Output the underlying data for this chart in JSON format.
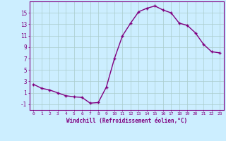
{
  "x": [
    0,
    1,
    2,
    3,
    4,
    5,
    6,
    7,
    8,
    9,
    10,
    11,
    12,
    13,
    14,
    15,
    16,
    17,
    18,
    19,
    20,
    21,
    22,
    23
  ],
  "y": [
    2.5,
    1.8,
    1.5,
    1.0,
    0.5,
    0.3,
    0.2,
    -0.8,
    -0.7,
    2.0,
    7.0,
    11.0,
    13.2,
    15.2,
    15.8,
    16.2,
    15.5,
    15.0,
    13.2,
    12.8,
    11.5,
    9.5,
    8.2,
    8.0
  ],
  "line_color": "#800080",
  "marker": "+",
  "marker_color": "#800080",
  "bg_color": "#cceeff",
  "grid_color": "#aacccc",
  "xlabel": "Windchill (Refroidissement éolien,°C)",
  "ylabel": "",
  "title": "",
  "xlim": [
    -0.5,
    23.5
  ],
  "ylim": [
    -2,
    17
  ],
  "yticks": [
    -1,
    1,
    3,
    5,
    7,
    9,
    11,
    13,
    15
  ],
  "xticks": [
    0,
    1,
    2,
    3,
    4,
    5,
    6,
    7,
    8,
    9,
    10,
    11,
    12,
    13,
    14,
    15,
    16,
    17,
    18,
    19,
    20,
    21,
    22,
    23
  ],
  "tick_label_color": "#800080",
  "xlabel_color": "#800080",
  "axis_color": "#800080",
  "linewidth": 1.0,
  "markersize": 3.5
}
